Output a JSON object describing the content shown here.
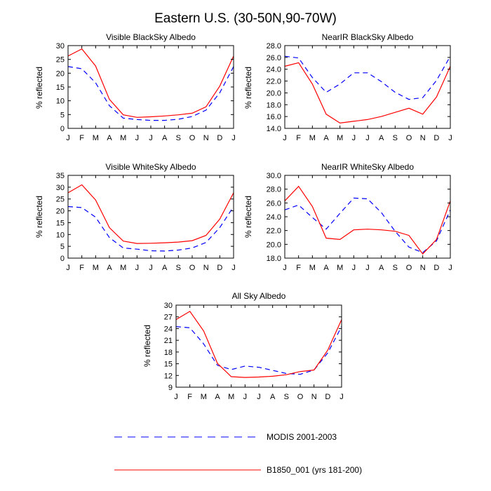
{
  "title": "Eastern U.S. (30-50N,90-70W)",
  "colors": {
    "modis": "#0000ff",
    "model": "#ff0000",
    "axis": "#000000"
  },
  "legend": {
    "entries": [
      {
        "label": "MODIS 2001-2003",
        "series": "modis",
        "style": "dashed"
      },
      {
        "label": "B1850_001 (yrs 181-200)",
        "series": "model",
        "style": "solid"
      }
    ]
  },
  "chart_data": [
    {
      "type": "line",
      "title": "Visible BlackSky Albedo",
      "xlabel": "",
      "ylabel": "% reflected",
      "categories": [
        "J",
        "F",
        "M",
        "A",
        "M",
        "J",
        "J",
        "A",
        "S",
        "O",
        "N",
        "D",
        "J"
      ],
      "ylim": [
        0,
        30
      ],
      "yticks": [
        0,
        5,
        10,
        15,
        20,
        25,
        30
      ],
      "ytick_labels": [
        "0",
        "5",
        "10",
        "15",
        "20",
        "25",
        "30"
      ],
      "series": [
        {
          "name": "MODIS 2001-2003",
          "values": [
            22.4,
            21.6,
            16.5,
            8.2,
            3.7,
            3.2,
            2.9,
            2.9,
            3.3,
            4.3,
            6.6,
            12.9,
            22.4
          ]
        },
        {
          "name": "B1850_001 (yrs 181-200)",
          "values": [
            26.2,
            28.8,
            22.6,
            10.5,
            4.9,
            4.0,
            4.2,
            4.5,
            4.9,
            5.5,
            7.8,
            15.3,
            26.2
          ]
        }
      ]
    },
    {
      "type": "line",
      "title": "NearIR BlackSky Albedo",
      "xlabel": "",
      "ylabel": "% reflected",
      "categories": [
        "J",
        "F",
        "M",
        "A",
        "M",
        "J",
        "J",
        "A",
        "S",
        "O",
        "N",
        "D",
        "J"
      ],
      "ylim": [
        14,
        28
      ],
      "yticks": [
        14,
        16,
        18,
        20,
        22,
        24,
        26,
        28
      ],
      "ytick_labels": [
        "14.0",
        "16.0",
        "18.0",
        "20.0",
        "22.0",
        "24.0",
        "26.0",
        "28.0"
      ],
      "series": [
        {
          "name": "MODIS 2001-2003",
          "values": [
            26.2,
            25.9,
            22.6,
            20.1,
            21.5,
            23.4,
            23.4,
            21.9,
            20.1,
            18.9,
            19.2,
            22.1,
            26.2
          ]
        },
        {
          "name": "B1850_001 (yrs 181-200)",
          "values": [
            24.5,
            25.1,
            21.5,
            16.4,
            14.9,
            15.2,
            15.5,
            16.0,
            16.7,
            17.4,
            16.4,
            19.3,
            24.5
          ]
        }
      ]
    },
    {
      "type": "line",
      "title": "Visible WhiteSky Albedo",
      "xlabel": "",
      "ylabel": "% reflected",
      "categories": [
        "J",
        "F",
        "M",
        "A",
        "M",
        "J",
        "J",
        "A",
        "S",
        "O",
        "N",
        "D",
        "J"
      ],
      "ylim": [
        0,
        35
      ],
      "yticks": [
        0,
        5,
        10,
        15,
        20,
        25,
        30,
        35
      ],
      "ytick_labels": [
        "0",
        "5",
        "10",
        "15",
        "20",
        "25",
        "30",
        "35"
      ],
      "series": [
        {
          "name": "MODIS 2001-2003",
          "values": [
            21.8,
            21.4,
            17.3,
            8.7,
            4.3,
            3.8,
            3.1,
            3.0,
            3.4,
            4.3,
            6.6,
            12.9,
            21.8
          ]
        },
        {
          "name": "B1850_001 (yrs 181-200)",
          "values": [
            27.6,
            31.0,
            24.6,
            12.9,
            7.2,
            6.2,
            6.3,
            6.5,
            6.8,
            7.4,
            9.6,
            16.5,
            27.6
          ]
        }
      ]
    },
    {
      "type": "line",
      "title": "NearIR WhiteSky Albedo",
      "xlabel": "",
      "ylabel": "% reflected",
      "categories": [
        "J",
        "F",
        "M",
        "A",
        "M",
        "J",
        "J",
        "A",
        "S",
        "O",
        "N",
        "D",
        "J"
      ],
      "ylim": [
        18,
        30
      ],
      "yticks": [
        18,
        20,
        22,
        24,
        26,
        28,
        30
      ],
      "ytick_labels": [
        "18.0",
        "20.0",
        "22.0",
        "24.0",
        "26.0",
        "28.0",
        "30.0"
      ],
      "series": [
        {
          "name": "MODIS 2001-2003",
          "values": [
            25.0,
            25.7,
            23.9,
            22.2,
            24.5,
            26.7,
            26.6,
            24.6,
            21.9,
            19.6,
            18.8,
            20.5,
            25.0
          ]
        },
        {
          "name": "B1850_001 (yrs 181-200)",
          "values": [
            26.3,
            28.4,
            25.5,
            20.9,
            20.7,
            22.1,
            22.2,
            22.1,
            21.9,
            21.3,
            18.6,
            20.7,
            26.3
          ]
        }
      ]
    },
    {
      "type": "line",
      "title": "All Sky Albedo",
      "xlabel": "",
      "ylabel": "% reflected",
      "categories": [
        "J",
        "F",
        "M",
        "A",
        "M",
        "J",
        "J",
        "A",
        "S",
        "O",
        "N",
        "D",
        "J"
      ],
      "ylim": [
        9,
        30
      ],
      "yticks": [
        9,
        12,
        15,
        18,
        21,
        24,
        27,
        30
      ],
      "ytick_labels": [
        "9",
        "12",
        "15",
        "18",
        "21",
        "24",
        "27",
        "30"
      ],
      "series": [
        {
          "name": "MODIS 2001-2003",
          "values": [
            24.5,
            24.2,
            20.1,
            14.6,
            13.5,
            14.4,
            14.1,
            13.3,
            12.5,
            12.3,
            13.4,
            17.8,
            24.5
          ]
        },
        {
          "name": "B1850_001 (yrs 181-200)",
          "values": [
            26.3,
            28.4,
            23.4,
            15.1,
            11.7,
            11.5,
            11.6,
            11.8,
            12.2,
            13.0,
            13.4,
            18.5,
            26.3
          ]
        }
      ]
    }
  ]
}
